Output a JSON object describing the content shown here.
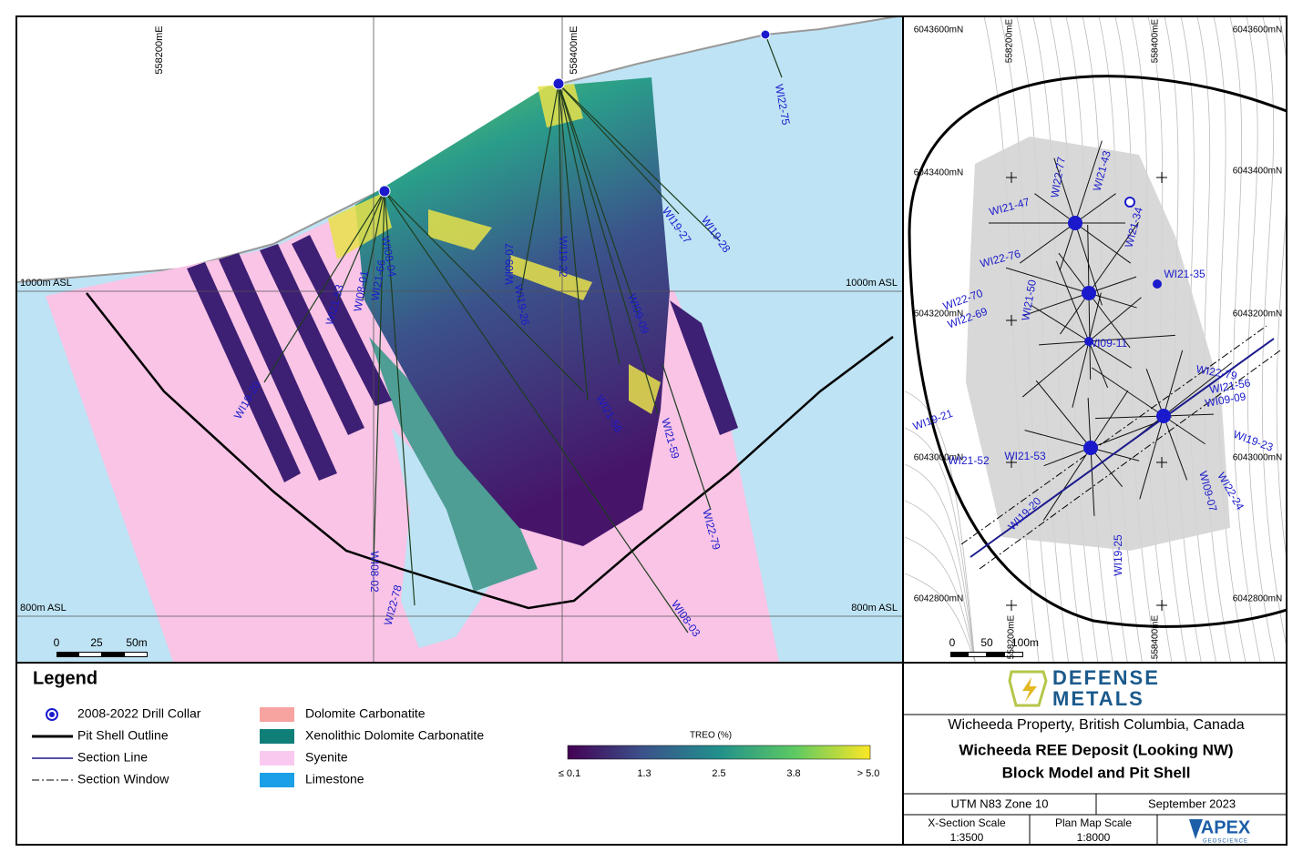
{
  "section": {
    "grid_labels": [
      "558200mE",
      "558400mE",
      "1000m ASL",
      "1000m ASL",
      "800m ASL",
      "800m ASL"
    ],
    "drill_holes": [
      "WI22-75",
      "WI19-28",
      "WI19-27",
      "WI19-22",
      "WI09-07",
      "WI19-26",
      "WI21-56",
      "WI21-59",
      "WI22-79",
      "WI08-03",
      "WI22-78",
      "WI08-02",
      "WI19-20",
      "WI21-53",
      "WI08-01",
      "WI08-04",
      "WI21-66",
      "WI09-09"
    ],
    "scale_bar": [
      "0",
      "25",
      "50m"
    ]
  },
  "plan_map": {
    "grid_labels": [
      "6043600mN",
      "6043600mN",
      "6043400mN",
      "6043400mN",
      "6043200mN",
      "6043200mN",
      "6043000mN",
      "6043000mN",
      "6042800mN",
      "6042800mN",
      "558200mE",
      "558400mE",
      "558200mE",
      "558400mE"
    ],
    "drill_holes": [
      "WI22-77",
      "WI21-43",
      "WI21-47",
      "WI21-34",
      "WI22-76",
      "WI21-35",
      "WI22-70",
      "WI22-69",
      "WI21-50",
      "WI09-11",
      "WI19-21",
      "WI21-52",
      "WI21-53",
      "WI19-20",
      "WI09-07",
      "WI19-25",
      "WI19-23",
      "WI22-79",
      "WI09-09",
      "WI21-56",
      "WI22-24"
    ],
    "scale_bar": [
      "0",
      "50",
      "100m"
    ]
  },
  "legend": {
    "title": "Legend",
    "items": [
      "2008-2022 Drill Collar",
      "Pit Shell Outline",
      "Section Line",
      "Section Window",
      "Dolomite Carbonatite",
      "Xenolithic Dolomite Carbonatite",
      "Syenite",
      "Limestone"
    ]
  },
  "colorbar": {
    "title": "TREO (%)",
    "labels": [
      "≤ 0.1",
      "1.3",
      "2.5",
      "3.8",
      "> 5.0"
    ]
  },
  "title_block": {
    "logo_top": "DEFENSE",
    "logo_bottom": "METALS",
    "property": "Wicheeda Property, British Columbia, Canada",
    "title_line1": "Wicheeda REE Deposit (Looking NW)",
    "title_line2": "Block Model and Pit Shell",
    "projection": "UTM N83 Zone 10",
    "date": "September 2023",
    "xsection_scale_label": "X-Section Scale",
    "xsection_scale": "1:3500",
    "plan_scale_label": "Plan Map Scale",
    "plan_scale": "1:8000",
    "company": "APEX",
    "company_sub": "GEOSCIENCE"
  }
}
